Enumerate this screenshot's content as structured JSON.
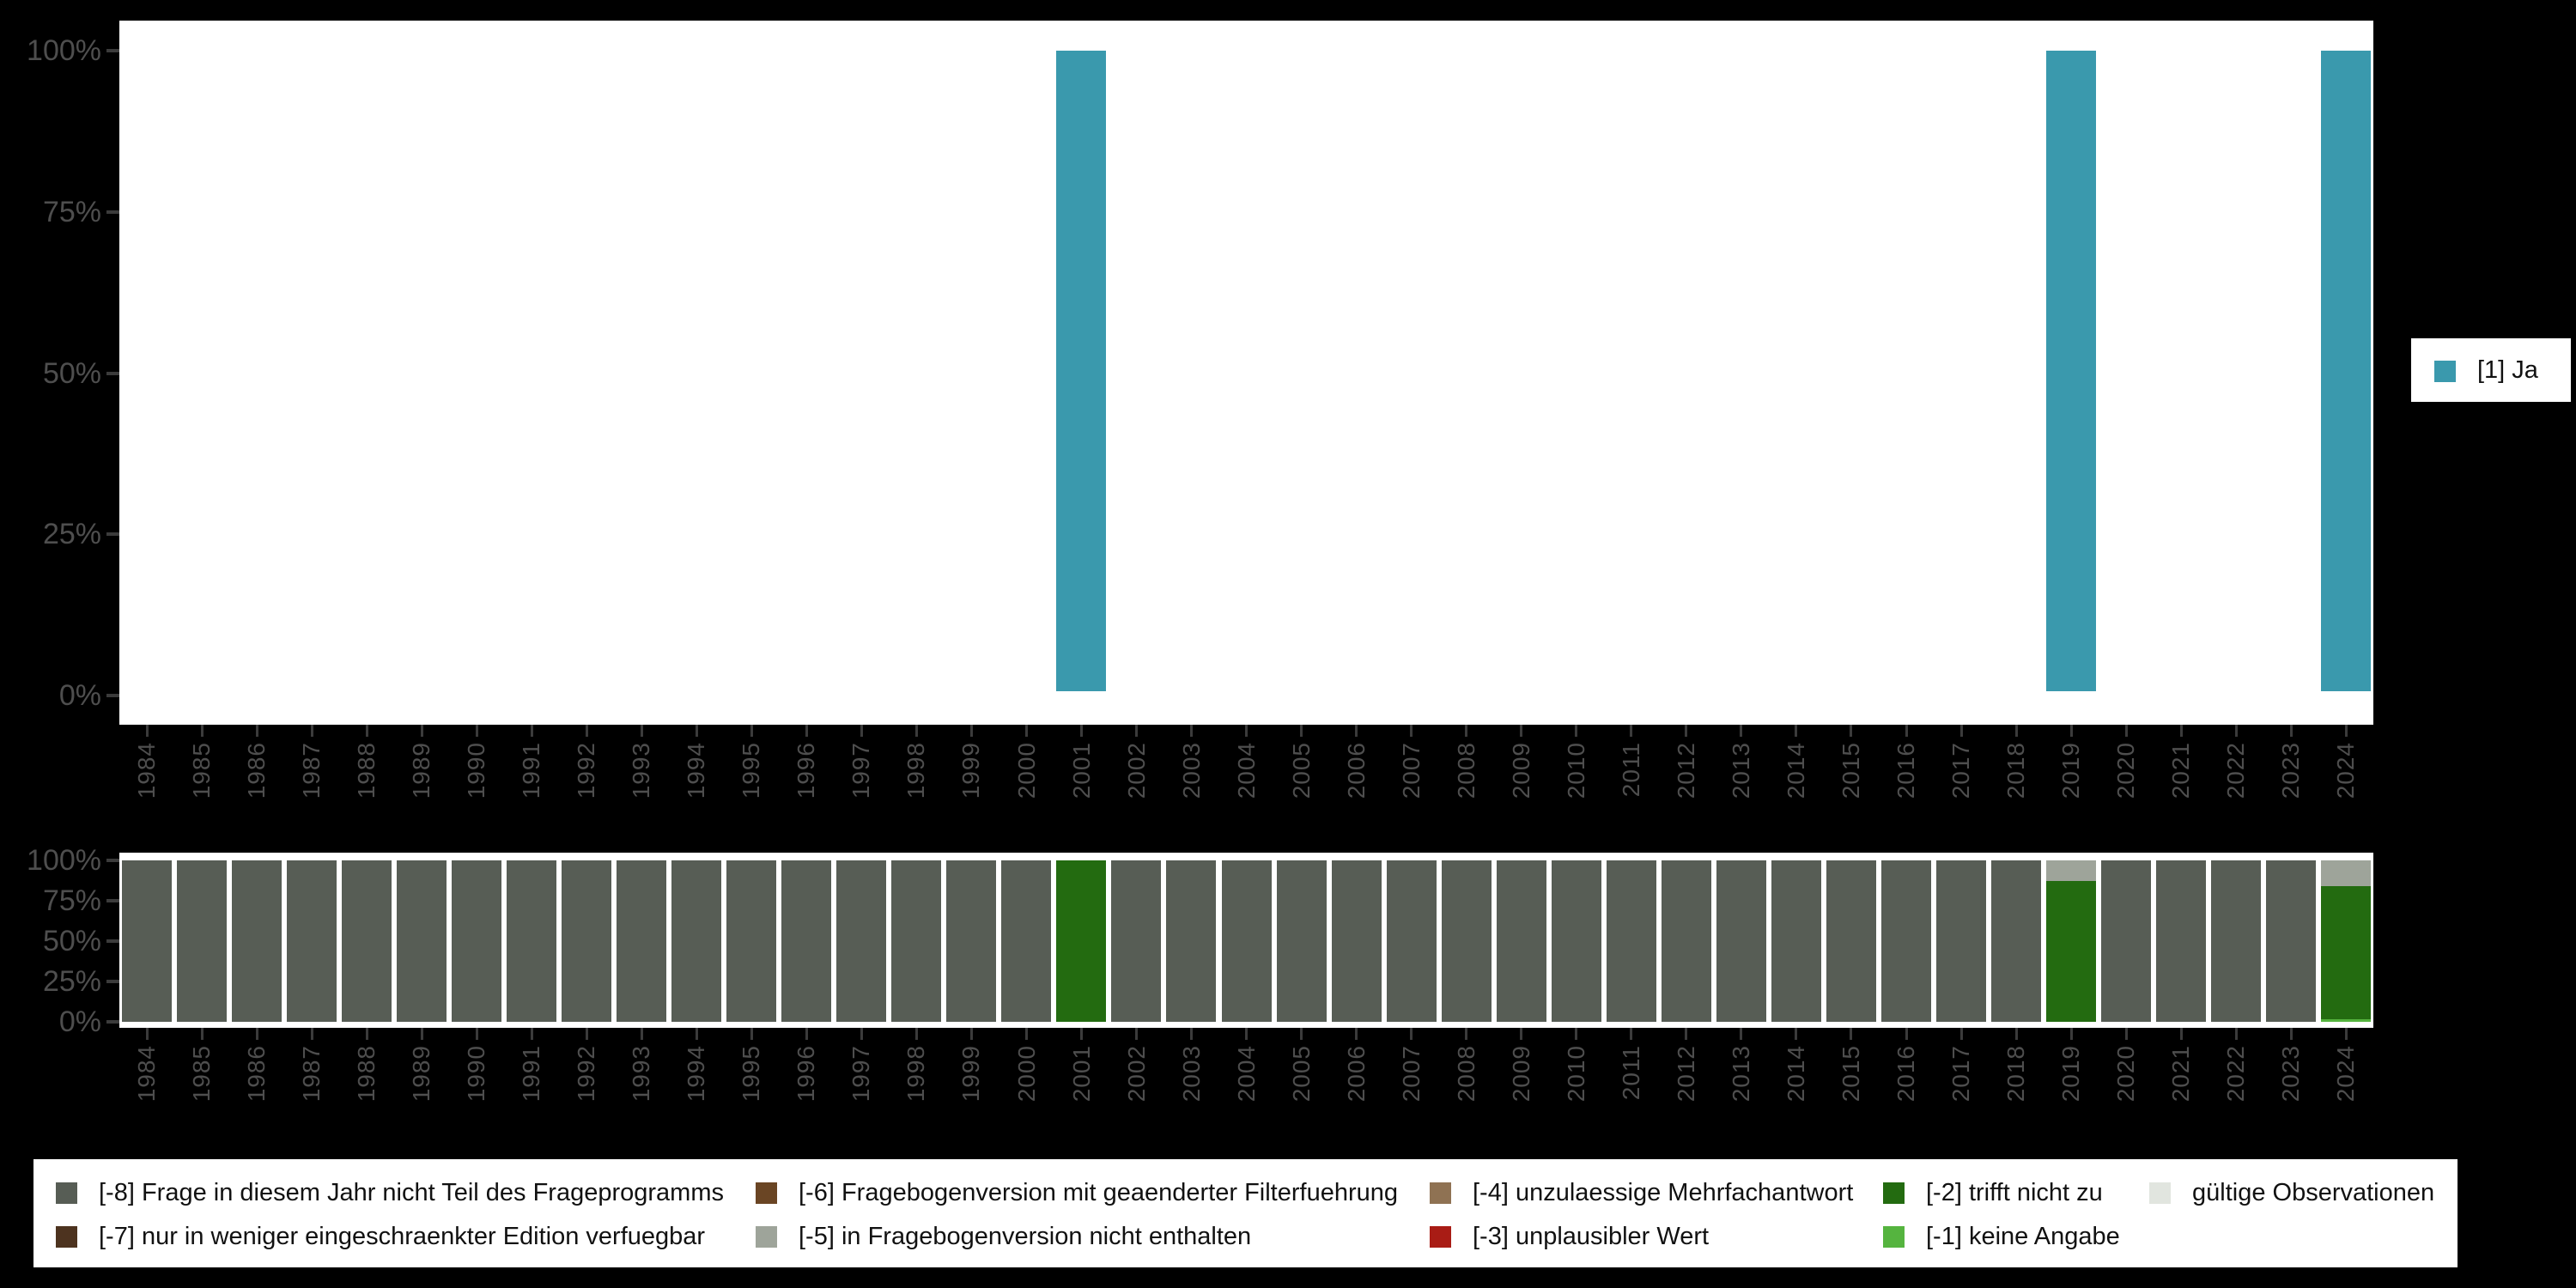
{
  "palette": {
    "ja": "#3A99AD",
    "m8": "#575D55",
    "m7": "#4D331F",
    "m6": "#6A4524",
    "m5": "#9EA49A",
    "m4": "#8F7253",
    "m3": "#A91C15",
    "m2": "#236B10",
    "m1": "#55B43F",
    "valid": "#E1E5DF"
  },
  "y_ticks": [
    "100%",
    "75%",
    "50%",
    "25%",
    "0%"
  ],
  "right_legend": {
    "label": "[1] Ja",
    "color": "ja"
  },
  "bottom_legend": {
    "items": [
      {
        "label": "[-8] Frage in diesem Jahr nicht Teil des Frageprogramms",
        "color": "m8",
        "col": 1,
        "row": 1
      },
      {
        "label": "[-7] nur in weniger eingeschraenkter Edition verfuegbar",
        "color": "m7",
        "col": 1,
        "row": 2
      },
      {
        "label": "[-6] Fragebogenversion mit geaenderter Filterfuehrung",
        "color": "m6",
        "col": 2,
        "row": 1
      },
      {
        "label": "[-5] in Fragebogenversion nicht enthalten",
        "color": "m5",
        "col": 2,
        "row": 2
      },
      {
        "label": "[-4] unzulaessige Mehrfachantwort",
        "color": "m4",
        "col": 3,
        "row": 1
      },
      {
        "label": "[-3] unplausibler Wert",
        "color": "m3",
        "col": 3,
        "row": 2
      },
      {
        "label": "[-2] trifft nicht zu",
        "color": "m2",
        "col": 4,
        "row": 1
      },
      {
        "label": "[-1] keine Angabe",
        "color": "m1",
        "col": 4,
        "row": 2
      },
      {
        "label": "gültige Observationen",
        "color": "valid",
        "col": 5,
        "row": 1
      }
    ]
  },
  "chart_data": [
    {
      "id": "values",
      "type": "bar",
      "title": "",
      "xlabel": "",
      "ylabel": "",
      "ylim": [
        0,
        100
      ],
      "grid": false,
      "legend_position": "right",
      "categories": [
        1984,
        1985,
        1986,
        1987,
        1988,
        1989,
        1990,
        1991,
        1992,
        1993,
        1994,
        1995,
        1996,
        1997,
        1998,
        1999,
        2000,
        2001,
        2002,
        2003,
        2004,
        2005,
        2006,
        2007,
        2008,
        2009,
        2010,
        2011,
        2012,
        2013,
        2014,
        2015,
        2016,
        2017,
        2018,
        2019,
        2020,
        2021,
        2022,
        2023,
        2024
      ],
      "series": [
        {
          "name": "[1] Ja",
          "color": "ja",
          "values": [
            0,
            0,
            0,
            0,
            0,
            0,
            0,
            0,
            0,
            0,
            0,
            0,
            0,
            0,
            0,
            0,
            0,
            100,
            0,
            0,
            0,
            0,
            0,
            0,
            0,
            0,
            0,
            0,
            0,
            0,
            0,
            0,
            0,
            0,
            0,
            100,
            0,
            0,
            0,
            0,
            100
          ]
        }
      ]
    },
    {
      "id": "missings",
      "type": "stacked-bar",
      "title": "",
      "xlabel": "",
      "ylabel": "",
      "ylim": [
        0,
        100
      ],
      "grid": false,
      "legend_position": "bottom",
      "categories": [
        1984,
        1985,
        1986,
        1987,
        1988,
        1989,
        1990,
        1991,
        1992,
        1993,
        1994,
        1995,
        1996,
        1997,
        1998,
        1999,
        2000,
        2001,
        2002,
        2003,
        2004,
        2005,
        2006,
        2007,
        2008,
        2009,
        2010,
        2011,
        2012,
        2013,
        2014,
        2015,
        2016,
        2017,
        2018,
        2019,
        2020,
        2021,
        2022,
        2023,
        2024
      ],
      "series": [
        {
          "name": "[-1] keine Angabe",
          "color": "m1",
          "values": [
            0,
            0,
            0,
            0,
            0,
            0,
            0,
            0,
            0,
            0,
            0,
            0,
            0,
            0,
            0,
            0,
            0,
            0,
            0,
            0,
            0,
            0,
            0,
            0,
            0,
            0,
            0,
            0,
            0,
            0,
            0,
            0,
            0,
            0,
            0,
            0,
            0,
            0,
            0,
            0,
            1.5
          ]
        },
        {
          "name": "[-2] trifft nicht zu",
          "color": "m2",
          "values": [
            0,
            0,
            0,
            0,
            0,
            0,
            0,
            0,
            0,
            0,
            0,
            0,
            0,
            0,
            0,
            0,
            0,
            100,
            0,
            0,
            0,
            0,
            0,
            0,
            0,
            0,
            0,
            0,
            0,
            0,
            0,
            0,
            0,
            0,
            0,
            87,
            0,
            0,
            0,
            0,
            82.5
          ]
        },
        {
          "name": "[-5] in Fragebogenversion nicht enthalten",
          "color": "m5",
          "values": [
            0,
            0,
            0,
            0,
            0,
            0,
            0,
            0,
            0,
            0,
            0,
            0,
            0,
            0,
            0,
            0,
            0,
            0,
            0,
            0,
            0,
            0,
            0,
            0,
            0,
            0,
            0,
            0,
            0,
            0,
            0,
            0,
            0,
            0,
            0,
            13,
            0,
            0,
            0,
            0,
            16
          ]
        },
        {
          "name": "[-8] Frage in diesem Jahr nicht Teil des Frageprogramms",
          "color": "m8",
          "values": [
            100,
            100,
            100,
            100,
            100,
            100,
            100,
            100,
            100,
            100,
            100,
            100,
            100,
            100,
            100,
            100,
            100,
            0,
            100,
            100,
            100,
            100,
            100,
            100,
            100,
            100,
            100,
            100,
            100,
            100,
            100,
            100,
            100,
            100,
            100,
            0,
            100,
            100,
            100,
            100,
            0
          ]
        }
      ]
    }
  ]
}
